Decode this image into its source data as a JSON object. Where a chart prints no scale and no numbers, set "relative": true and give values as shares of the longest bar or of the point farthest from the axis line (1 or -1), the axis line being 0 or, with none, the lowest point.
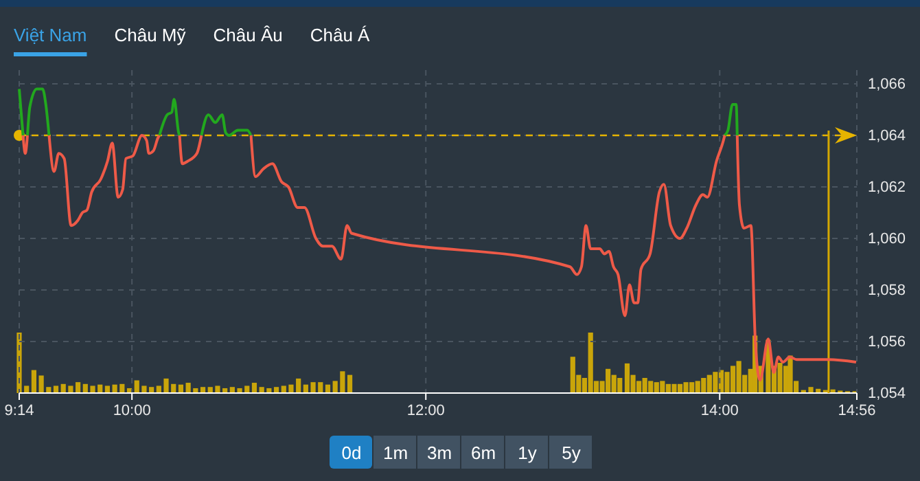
{
  "chart_data": [
    {
      "type": "line",
      "annotations": [
        "Việt Nam",
        "Châu Mỹ",
        "Châu Âu",
        "Châu Á",
        "0d",
        "1m",
        "3m",
        "6m",
        "1y",
        "5y"
      ],
      "series": [
        {
          "color": "#22a81e",
          "x": [
            9.233,
            9.259,
            9.274,
            9.289,
            9.305,
            9.352,
            9.392,
            9.414,
            9.436,
            9.47,
            10.187,
            10.24,
            10.271,
            10.287,
            10.318,
            10.324,
            10.343,
            10.473,
            10.52,
            10.567,
            10.614,
            10.638,
            10.66,
            10.722,
            10.785,
            10.81,
            10.841,
            14.034,
            14.056,
            14.087,
            14.112,
            14.119
          ],
          "values": [
            1065.8,
            1064.0,
            null,
            1064.0,
            1065.1,
            1065.8,
            1065.8,
            1065.2,
            1064.0,
            null,
            1064.0,
            1064.8,
            1064.9,
            1065.4,
            1064.1,
            1064.0,
            null,
            1064.0,
            1064.8,
            1064.5,
            1064.8,
            1064.1,
            1064.0,
            1064.2,
            1064.2,
            1064.0,
            null,
            1064.0,
            1064.2,
            1065.2,
            1065.2,
            1064.0
          ]
        },
        {
          "color": "#ee5a48",
          "x": [
            9.259,
            9.274,
            9.289,
            9.36,
            9.436,
            9.47,
            9.502,
            9.539,
            9.586,
            9.632,
            9.663,
            9.694,
            9.726,
            9.788,
            9.834,
            9.866,
            9.906,
            9.937,
            9.959,
            10.006,
            10.068,
            10.1,
            10.115,
            10.146,
            10.177,
            10.187,
            10.25,
            10.324,
            10.343,
            10.38,
            10.442,
            10.473,
            10.55,
            10.81,
            10.841,
            10.894,
            10.956,
            11.018,
            11.065,
            11.128,
            11.174,
            11.252,
            11.299,
            11.361,
            11.423,
            11.464,
            11.495,
            12.981,
            13.028,
            13.059,
            13.09,
            13.121,
            13.184,
            13.215,
            13.246,
            13.277,
            13.308,
            13.355,
            13.386,
            13.417,
            13.442,
            13.464,
            13.526,
            13.589,
            13.62,
            13.666,
            13.729,
            13.776,
            13.838,
            13.885,
            13.916,
            13.978,
            14.025,
            14.034,
            14.08,
            14.119,
            14.134,
            14.165,
            14.212,
            14.243,
            14.274,
            14.33,
            14.368,
            14.399,
            14.43,
            14.477,
            14.523,
            14.741,
            14.928
          ],
          "values": [
            1064.0,
            1063.3,
            1064.0,
            null,
            1064.0,
            1062.6,
            1063.3,
            1063.1,
            1060.5,
            1060.7,
            1061.0,
            1061.1,
            1061.8,
            1062.3,
            1063.0,
            1063.7,
            1061.6,
            1061.9,
            1063.1,
            1063.2,
            1064.0,
            1063.8,
            1063.3,
            1063.4,
            1063.9,
            1064.0,
            null,
            1064.0,
            1062.9,
            1063.0,
            1063.3,
            1064.0,
            null,
            1064.0,
            1062.4,
            1062.7,
            1062.9,
            1062.2,
            1062.0,
            1061.2,
            1061.2,
            1060.0,
            1059.7,
            1059.7,
            1059.2,
            1060.5,
            1060.2,
            1058.9,
            1058.6,
            1058.9,
            1060.5,
            1059.6,
            1059.6,
            1059.4,
            1059.5,
            1058.9,
            1058.6,
            1057.0,
            1058.2,
            1057.5,
            1057.5,
            1058.8,
            1059.4,
            1061.8,
            1062.1,
            1060.5,
            1060.0,
            1060.4,
            1061.3,
            1061.7,
            1061.6,
            1063.0,
            1063.8,
            1064.0,
            null,
            1064.0,
            1061.3,
            1060.4,
            1060.5,
            1055.9,
            1054.5,
            1056.1,
            1054.8,
            1055.4,
            1055.2,
            1055.4,
            1055.3,
            1055.3,
            1055.2
          ]
        }
      ],
      "xlim": [
        9.233,
        14.933
      ],
      "xticks": [
        {
          "value": 9.233,
          "label": "9:14"
        },
        {
          "value": 10,
          "label": "10:00"
        },
        {
          "value": 12,
          "label": "12:00"
        },
        {
          "value": 14,
          "label": "14:00"
        },
        {
          "value": 14.933,
          "label": "14:56"
        }
      ],
      "ylim": [
        1054,
        1066
      ],
      "yticks": [
        {
          "value": 1054,
          "label": "1,054"
        },
        {
          "value": 1056,
          "label": "1,056"
        },
        {
          "value": 1058,
          "label": "1,058"
        },
        {
          "value": 1060,
          "label": "1,060"
        },
        {
          "value": 1062,
          "label": "1,062"
        },
        {
          "value": 1064,
          "label": "1,064"
        },
        {
          "value": 1066,
          "label": "1,066"
        }
      ],
      "grid": true,
      "ref_lines": [
        {
          "axis": "y",
          "value": 1064,
          "color": "#e6b400",
          "line_style": "dashed"
        },
        {
          "axis": "x",
          "value": 14.741,
          "color": "#d4a800",
          "line_style": "solid"
        }
      ]
    },
    {
      "type": "bar",
      "relative": true,
      "color": "#c9a50a",
      "tick_labels": false,
      "xlim": [
        9.233,
        14.933
      ],
      "x": [
        9.233,
        9.283,
        9.333,
        9.383,
        9.433,
        9.483,
        9.533,
        9.583,
        9.633,
        9.683,
        9.733,
        9.783,
        9.833,
        9.883,
        9.933,
        9.983,
        10.033,
        10.083,
        10.133,
        10.183,
        10.233,
        10.283,
        10.333,
        10.383,
        10.433,
        10.483,
        10.533,
        10.583,
        10.633,
        10.683,
        10.733,
        10.783,
        10.833,
        10.883,
        10.933,
        10.983,
        11.033,
        11.083,
        11.133,
        11.183,
        11.233,
        11.283,
        11.333,
        11.383,
        11.433,
        11.483,
        13.0,
        13.04,
        13.08,
        13.121,
        13.16,
        13.2,
        13.24,
        13.28,
        13.32,
        13.37,
        13.41,
        13.45,
        13.49,
        13.53,
        13.57,
        13.61,
        13.65,
        13.69,
        13.73,
        13.77,
        13.81,
        13.85,
        13.89,
        13.93,
        13.97,
        14.01,
        14.05,
        14.09,
        14.13,
        14.17,
        14.21,
        14.24,
        14.28,
        14.33,
        14.37,
        14.41,
        14.45,
        14.48,
        14.52,
        14.57,
        14.62,
        14.67,
        14.72,
        14.77,
        14.82,
        14.87,
        14.92
      ],
      "values": [
        1.0,
        0.12,
        0.38,
        0.29,
        0.1,
        0.12,
        0.15,
        0.12,
        0.18,
        0.15,
        0.12,
        0.14,
        0.12,
        0.14,
        0.15,
        0.08,
        0.21,
        0.12,
        0.1,
        0.12,
        0.24,
        0.15,
        0.14,
        0.17,
        0.08,
        0.1,
        0.1,
        0.12,
        0.08,
        0.1,
        0.08,
        0.12,
        0.17,
        0.1,
        0.08,
        0.1,
        0.12,
        0.14,
        0.24,
        0.14,
        0.18,
        0.18,
        0.14,
        0.2,
        0.36,
        0.3,
        0.6,
        0.3,
        0.25,
        1.0,
        0.2,
        0.2,
        0.4,
        0.3,
        0.25,
        0.49,
        0.3,
        0.2,
        0.25,
        0.2,
        0.18,
        0.2,
        0.15,
        0.15,
        0.15,
        0.18,
        0.18,
        0.2,
        0.25,
        0.3,
        0.35,
        0.38,
        0.35,
        0.45,
        0.53,
        0.3,
        0.4,
        0.95,
        0.45,
        0.88,
        0.45,
        0.5,
        0.45,
        0.62,
        0.2,
        0.05,
        0.1,
        0.07,
        0.05,
        0.06,
        0.04,
        0.03,
        0.03
      ]
    }
  ]
}
